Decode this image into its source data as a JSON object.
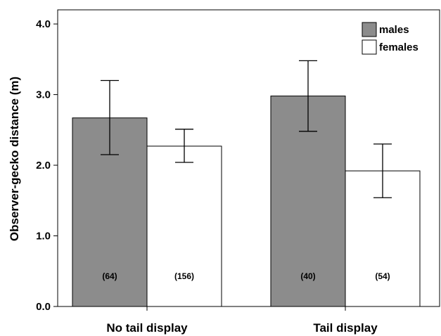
{
  "chart_data": {
    "type": "bar",
    "categories": [
      "No tail display",
      "Tail display"
    ],
    "series": [
      {
        "name": "males",
        "color": "#8c8c8c",
        "values": [
          2.67,
          2.98
        ],
        "error_low": [
          2.15,
          2.48
        ],
        "error_high": [
          3.2,
          3.48
        ],
        "n_labels": [
          "(64)",
          "(40)"
        ]
      },
      {
        "name": "females",
        "color": "#ffffff",
        "values": [
          2.27,
          1.92
        ],
        "error_low": [
          2.04,
          1.54
        ],
        "error_high": [
          2.51,
          2.3
        ],
        "n_labels": [
          "(156)",
          "(54)"
        ]
      }
    ],
    "ylabel": "Observer-gecko distance (m)",
    "xlabel": "",
    "ylim": [
      0,
      4.2
    ],
    "yticks": [
      0.0,
      1.0,
      2.0,
      3.0,
      4.0
    ],
    "ytick_labels": [
      "0.0",
      "1.0",
      "2.0",
      "3.0",
      "4.0"
    ],
    "grid": false,
    "legend_position": "top-right"
  }
}
